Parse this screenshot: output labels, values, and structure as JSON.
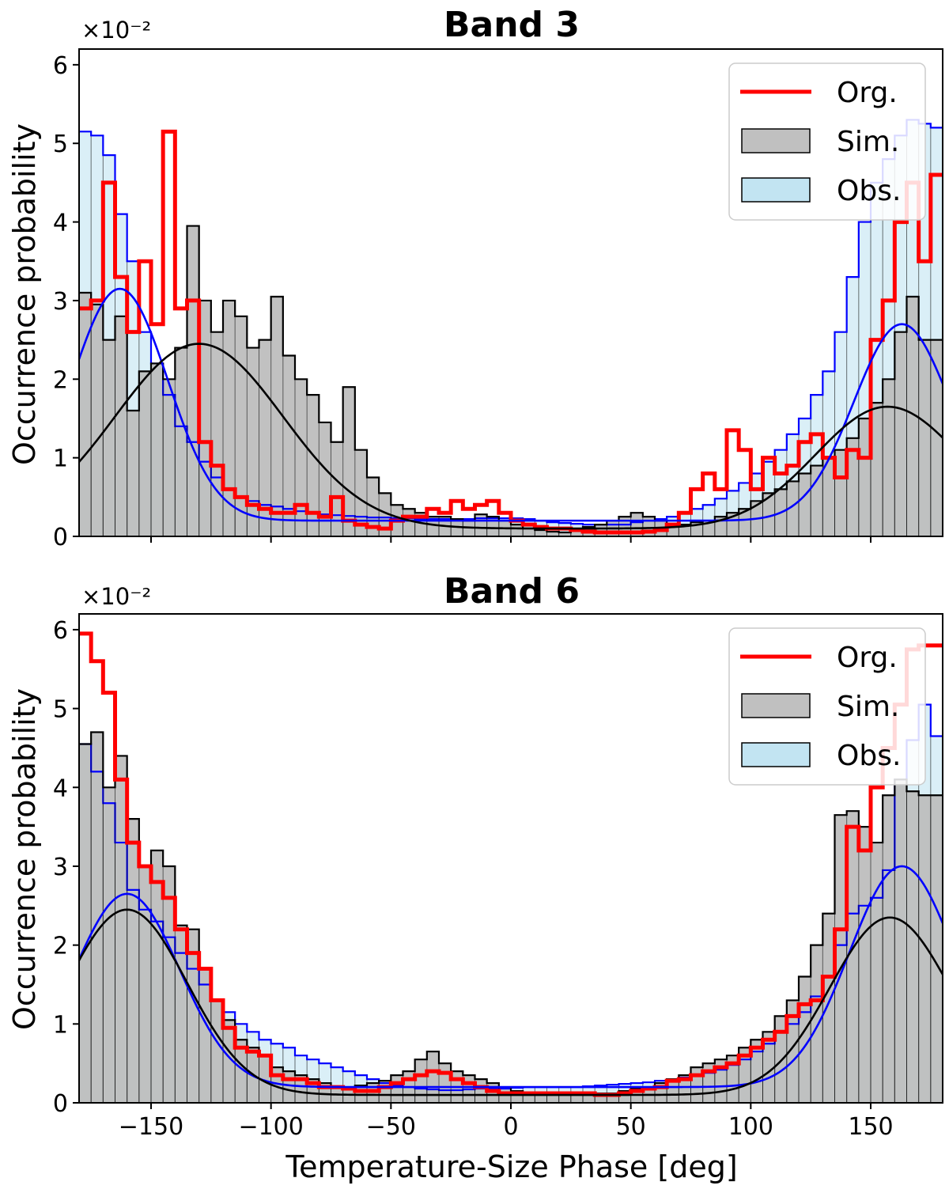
{
  "chart_data": [
    {
      "type": "histogram",
      "title": "Band 3",
      "xlabel": "",
      "ylabel": "Occurrence probability",
      "y_multiplier": "×10⁻²",
      "xlim": [
        -180,
        180
      ],
      "ylim": [
        0,
        6.2
      ],
      "xticks": [
        -150,
        -100,
        -50,
        0,
        50,
        100,
        150
      ],
      "xtick_labels": [
        "",
        "",
        "",
        "",
        "",
        "",
        ""
      ],
      "yticks": [
        0,
        1,
        2,
        3,
        4,
        5,
        6
      ],
      "ytick_labels": [
        "0",
        "1",
        "2",
        "3",
        "4",
        "5",
        "6"
      ],
      "bin_width": 5,
      "bin_start": -180,
      "legend": {
        "position": "top-right",
        "entries": [
          {
            "label": "Org.",
            "kind": "line",
            "color": "#ff0000"
          },
          {
            "label": "Sim.",
            "kind": "patch",
            "color": "#c0c0c0"
          },
          {
            "label": "Obs.",
            "kind": "patch",
            "color": "#c2e4f2"
          }
        ]
      },
      "series": [
        {
          "name": "Obs.",
          "kind": "hist",
          "fill": "#c2e4f2",
          "edge": "#0000ff",
          "values": [
            5.15,
            5.1,
            4.85,
            4.1,
            3.5,
            2.6,
            2.2,
            1.8,
            1.4,
            1.2,
            0.95,
            0.75,
            0.6,
            0.5,
            0.45,
            0.4,
            0.38,
            0.35,
            0.32,
            0.3,
            0.28,
            0.27,
            0.26,
            0.25,
            0.24,
            0.24,
            0.23,
            0.23,
            0.22,
            0.22,
            0.22,
            0.22,
            0.22,
            0.23,
            0.23,
            0.23,
            0.23,
            0.22,
            0.2,
            0.18,
            0.17,
            0.16,
            0.15,
            0.15,
            0.15,
            0.15,
            0.18,
            0.2,
            0.22,
            0.25,
            0.3,
            0.35,
            0.4,
            0.48,
            0.58,
            0.68,
            0.8,
            0.95,
            1.1,
            1.3,
            1.5,
            1.8,
            2.1,
            2.6,
            3.3,
            4.0,
            4.5,
            4.8,
            5.1,
            5.3,
            5.25,
            5.2
          ]
        },
        {
          "name": "Sim.",
          "kind": "hist",
          "fill": "#bebebe",
          "edge": "#000000",
          "values": [
            3.1,
            2.95,
            2.5,
            2.8,
            1.6,
            2.1,
            2.2,
            2.0,
            2.4,
            3.95,
            3.0,
            2.6,
            3.0,
            2.8,
            2.4,
            2.5,
            3.05,
            2.3,
            2.0,
            1.8,
            1.45,
            1.2,
            1.9,
            1.1,
            0.75,
            0.55,
            0.4,
            0.35,
            0.3,
            0.25,
            0.25,
            0.22,
            0.2,
            0.28,
            0.25,
            0.2,
            0.15,
            0.1,
            0.08,
            0.06,
            0.05,
            0.08,
            0.12,
            0.15,
            0.2,
            0.25,
            0.3,
            0.25,
            0.2,
            0.15,
            0.15,
            0.18,
            0.2,
            0.25,
            0.3,
            0.35,
            0.45,
            0.55,
            0.6,
            0.7,
            0.8,
            0.9,
            1.0,
            1.1,
            1.25,
            1.5,
            1.7,
            2.0,
            2.6,
            3.05,
            2.5,
            2.5
          ]
        },
        {
          "name": "Org.",
          "kind": "step",
          "color": "#ff0000",
          "values": [
            2.9,
            3.0,
            4.5,
            3.3,
            2.6,
            3.5,
            2.7,
            5.15,
            2.9,
            3.0,
            1.2,
            0.9,
            0.6,
            0.5,
            0.4,
            0.35,
            0.3,
            0.3,
            0.4,
            0.3,
            0.25,
            0.5,
            0.2,
            0.15,
            0.12,
            0.1,
            0.2,
            0.25,
            0.25,
            0.35,
            0.3,
            0.45,
            0.35,
            0.4,
            0.45,
            0.3,
            0.2,
            0.15,
            0.12,
            0.1,
            0.1,
            0.08,
            0.06,
            0.05,
            0.05,
            0.05,
            0.05,
            0.06,
            0.08,
            0.15,
            0.3,
            0.6,
            0.8,
            0.6,
            1.35,
            1.1,
            0.6,
            1.0,
            0.8,
            0.9,
            1.2,
            1.3,
            1.0,
            0.75,
            1.1,
            1.0,
            2.5,
            3.0,
            4.0,
            4.5,
            3.5,
            4.6
          ]
        },
        {
          "name": "Obs. fit",
          "kind": "curve",
          "color": "#0000ff",
          "mu1": -163,
          "a1": 2.95,
          "s1": 20,
          "mu2": 163,
          "a2": 2.5,
          "s2": 20,
          "base": 0.2
        },
        {
          "name": "Sim. fit",
          "kind": "curve",
          "color": "#000000",
          "mu1": -130,
          "a1": 2.35,
          "s1": 35,
          "mu2": 157,
          "a2": 1.55,
          "s2": 30,
          "base": 0.1
        }
      ]
    },
    {
      "type": "histogram",
      "title": "Band 6",
      "xlabel": "Temperature-Size Phase [deg]",
      "ylabel": "Occurrence probability",
      "y_multiplier": "×10⁻²",
      "xlim": [
        -180,
        180
      ],
      "ylim": [
        0,
        6.2
      ],
      "xticks": [
        -150,
        -100,
        -50,
        0,
        50,
        100,
        150
      ],
      "xtick_labels": [
        "−150",
        "−100",
        "−50",
        "0",
        "50",
        "100",
        "150"
      ],
      "yticks": [
        0,
        1,
        2,
        3,
        4,
        5,
        6
      ],
      "ytick_labels": [
        "0",
        "1",
        "2",
        "3",
        "4",
        "5",
        "6"
      ],
      "bin_width": 5,
      "bin_start": -180,
      "legend": {
        "position": "top-right",
        "entries": [
          {
            "label": "Org.",
            "kind": "line",
            "color": "#ff0000"
          },
          {
            "label": "Sim.",
            "kind": "patch",
            "color": "#c0c0c0"
          },
          {
            "label": "Obs.",
            "kind": "patch",
            "color": "#c2e4f2"
          }
        ]
      },
      "series": [
        {
          "name": "Obs.",
          "kind": "hist",
          "fill": "#c2e4f2",
          "edge": "#0000ff",
          "values": [
            4.55,
            4.2,
            3.8,
            3.3,
            2.7,
            2.45,
            2.3,
            2.1,
            1.9,
            1.7,
            1.5,
            1.3,
            1.15,
            1.0,
            0.9,
            0.8,
            0.75,
            0.7,
            0.6,
            0.55,
            0.5,
            0.45,
            0.4,
            0.35,
            0.3,
            0.25,
            0.22,
            0.2,
            0.18,
            0.17,
            0.16,
            0.16,
            0.17,
            0.18,
            0.18,
            0.18,
            0.19,
            0.2,
            0.2,
            0.2,
            0.2,
            0.2,
            0.21,
            0.22,
            0.23,
            0.24,
            0.25,
            0.26,
            0.28,
            0.3,
            0.32,
            0.35,
            0.38,
            0.42,
            0.48,
            0.55,
            0.65,
            0.75,
            0.9,
            1.0,
            1.15,
            1.35,
            1.6,
            2.0,
            2.4,
            2.5,
            2.6,
            2.95,
            4.1,
            4.6,
            5.05,
            4.65
          ]
        },
        {
          "name": "Sim.",
          "kind": "hist",
          "fill": "#bebebe",
          "edge": "#000000",
          "values": [
            4.55,
            4.7,
            4.0,
            4.4,
            3.6,
            3.0,
            3.2,
            3.0,
            2.25,
            2.2,
            1.7,
            1.3,
            1.05,
            0.8,
            0.7,
            0.6,
            0.45,
            0.4,
            0.35,
            0.3,
            0.25,
            0.2,
            0.2,
            0.22,
            0.25,
            0.28,
            0.35,
            0.4,
            0.55,
            0.65,
            0.5,
            0.4,
            0.35,
            0.3,
            0.25,
            0.2,
            0.15,
            0.12,
            0.12,
            0.12,
            0.12,
            0.12,
            0.1,
            0.12,
            0.12,
            0.15,
            0.18,
            0.2,
            0.25,
            0.3,
            0.35,
            0.45,
            0.5,
            0.55,
            0.6,
            0.7,
            0.8,
            0.9,
            1.1,
            1.3,
            1.6,
            2.0,
            2.4,
            3.65,
            3.7,
            3.5,
            3.3,
            3.9,
            4.1,
            3.95,
            3.9,
            3.9
          ]
        },
        {
          "name": "Org.",
          "kind": "step",
          "color": "#ff0000",
          "values": [
            5.95,
            5.6,
            5.2,
            4.1,
            3.3,
            3.0,
            2.8,
            2.6,
            2.2,
            1.9,
            1.7,
            1.3,
            0.95,
            0.7,
            0.65,
            0.6,
            0.35,
            0.3,
            0.3,
            0.25,
            0.2,
            0.2,
            0.18,
            0.15,
            0.15,
            0.2,
            0.25,
            0.3,
            0.35,
            0.4,
            0.38,
            0.3,
            0.25,
            0.2,
            0.15,
            0.12,
            0.12,
            0.12,
            0.12,
            0.12,
            0.12,
            0.12,
            0.12,
            0.1,
            0.1,
            0.12,
            0.15,
            0.18,
            0.2,
            0.28,
            0.3,
            0.35,
            0.4,
            0.45,
            0.5,
            0.6,
            0.7,
            0.8,
            0.9,
            1.1,
            1.25,
            1.3,
            1.6,
            2.2,
            3.5,
            3.2,
            4.0,
            4.5,
            5.05,
            5.75,
            5.8,
            5.8
          ]
        },
        {
          "name": "Obs. fit",
          "kind": "curve",
          "color": "#0000ff",
          "mu1": -160,
          "a1": 2.45,
          "s1": 22,
          "mu2": 163,
          "a2": 2.8,
          "s2": 22,
          "base": 0.2
        },
        {
          "name": "Sim. fit",
          "kind": "curve",
          "color": "#000000",
          "mu1": -160,
          "a1": 2.35,
          "s1": 25,
          "mu2": 158,
          "a2": 2.25,
          "s2": 25,
          "base": 0.1
        }
      ]
    }
  ]
}
